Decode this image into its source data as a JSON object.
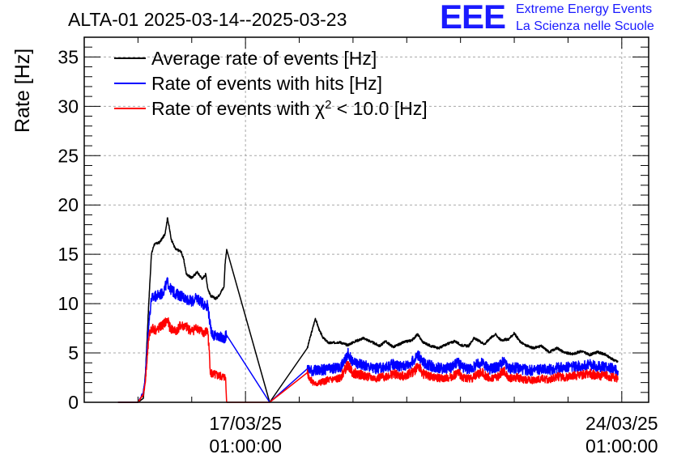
{
  "brand": {
    "logo": "EEE",
    "line1": "Extreme Energy Events",
    "line2": "La Scienza nelle Scuole"
  },
  "chart_data": {
    "type": "line",
    "title": "ALTA-01 2025-03-14--2025-03-23",
    "ylabel": "Rate [Hz]",
    "xlabel": "",
    "ylim": [
      0,
      37
    ],
    "x_unit": "days since 2025-03-14 01:00:00",
    "xlim": [
      0,
      10.5
    ],
    "yticks": [
      0,
      5,
      10,
      15,
      20,
      25,
      30,
      35
    ],
    "xticks": [
      {
        "x": 3,
        "label": [
          "17/03/25",
          "01:00:00"
        ]
      },
      {
        "x": 10,
        "label": [
          "24/03/25",
          "01:00:00"
        ]
      }
    ],
    "grid": true,
    "legend_position": "top-left",
    "legend": [
      {
        "label": "Average rate of events [Hz]",
        "color": "#000000"
      },
      {
        "label": "Rate of events with hits [Hz]",
        "color": "#0000ff"
      },
      {
        "label": "Rate of events with χ² < 10.0 [Hz]",
        "color": "#ff0000"
      }
    ],
    "series": [
      {
        "name": "Average rate of events [Hz]",
        "color": "#000000",
        "points": [
          [
            0.63,
            0
          ],
          [
            1.0,
            0
          ],
          [
            1.1,
            0.4
          ],
          [
            1.14,
            3
          ],
          [
            1.2,
            10
          ],
          [
            1.25,
            15
          ],
          [
            1.3,
            16
          ],
          [
            1.4,
            16.2
          ],
          [
            1.5,
            17
          ],
          [
            1.55,
            18.7
          ],
          [
            1.62,
            16.5
          ],
          [
            1.7,
            15.5
          ],
          [
            1.8,
            15.3
          ],
          [
            1.85,
            14.5
          ],
          [
            1.9,
            13
          ],
          [
            2.0,
            12.6
          ],
          [
            2.1,
            13.2
          ],
          [
            2.2,
            12.5
          ],
          [
            2.26,
            13
          ],
          [
            2.3,
            11.5
          ],
          [
            2.35,
            10.8
          ],
          [
            2.45,
            10.5
          ],
          [
            2.5,
            10.8
          ],
          [
            2.6,
            11.7
          ],
          [
            2.62,
            14
          ],
          [
            2.65,
            15.5
          ],
          [
            3.45,
            0
          ],
          [
            4.15,
            5.5
          ],
          [
            4.25,
            7.5
          ],
          [
            4.3,
            8.5
          ],
          [
            4.38,
            7.2
          ],
          [
            4.45,
            6.5
          ],
          [
            4.55,
            6
          ],
          [
            4.75,
            6.1
          ],
          [
            4.9,
            5.8
          ],
          [
            5.05,
            6.2
          ],
          [
            5.2,
            6.5
          ],
          [
            5.35,
            6.1
          ],
          [
            5.5,
            5.7
          ],
          [
            5.6,
            6.2
          ],
          [
            5.75,
            5.6
          ],
          [
            5.95,
            6.1
          ],
          [
            6.1,
            6.3
          ],
          [
            6.2,
            6.9
          ],
          [
            6.3,
            6.1
          ],
          [
            6.45,
            5.7
          ],
          [
            6.6,
            5.5
          ],
          [
            6.75,
            5.9
          ],
          [
            6.9,
            6.2
          ],
          [
            7.0,
            5.8
          ],
          [
            7.15,
            5.7
          ],
          [
            7.25,
            6.5
          ],
          [
            7.35,
            6.2
          ],
          [
            7.45,
            5.9
          ],
          [
            7.55,
            6.5
          ],
          [
            7.65,
            6.9
          ],
          [
            7.75,
            6.3
          ],
          [
            7.9,
            6.4
          ],
          [
            8.0,
            7.0
          ],
          [
            8.1,
            6.2
          ],
          [
            8.2,
            5.8
          ],
          [
            8.35,
            5.5
          ],
          [
            8.5,
            5.7
          ],
          [
            8.65,
            5.1
          ],
          [
            8.8,
            5.5
          ],
          [
            8.95,
            5.0
          ],
          [
            9.1,
            4.9
          ],
          [
            9.25,
            5.2
          ],
          [
            9.4,
            4.8
          ],
          [
            9.55,
            5.1
          ],
          [
            9.7,
            4.8
          ],
          [
            9.85,
            4.3
          ],
          [
            9.93,
            4.1
          ]
        ]
      },
      {
        "name": "Rate of events with hits [Hz]",
        "color": "#0000ff",
        "points": [
          [
            0.63,
            0
          ],
          [
            1.0,
            0
          ],
          [
            1.1,
            1
          ],
          [
            1.14,
            2.8
          ],
          [
            1.2,
            8
          ],
          [
            1.25,
            10.5
          ],
          [
            1.35,
            10.8
          ],
          [
            1.45,
            11
          ],
          [
            1.55,
            12.2
          ],
          [
            1.6,
            11.5
          ],
          [
            1.7,
            11
          ],
          [
            1.8,
            10.8
          ],
          [
            1.9,
            10.5
          ],
          [
            2.0,
            10.2
          ],
          [
            2.1,
            10.6
          ],
          [
            2.2,
            10
          ],
          [
            2.3,
            9.8
          ],
          [
            2.35,
            7.5
          ],
          [
            2.4,
            6.8
          ],
          [
            2.5,
            6.6
          ],
          [
            2.6,
            6.5
          ],
          [
            2.65,
            6.8
          ],
          [
            3.45,
            0
          ],
          [
            4.15,
            3.4
          ],
          [
            4.25,
            3.2
          ],
          [
            4.5,
            3.3
          ],
          [
            4.75,
            3.5
          ],
          [
            4.85,
            4.2
          ],
          [
            4.9,
            5.0
          ],
          [
            5.0,
            4.0
          ],
          [
            5.2,
            3.8
          ],
          [
            5.4,
            3.4
          ],
          [
            5.6,
            3.5
          ],
          [
            5.75,
            3.9
          ],
          [
            5.9,
            3.6
          ],
          [
            6.05,
            3.9
          ],
          [
            6.15,
            4.3
          ],
          [
            6.2,
            4.9
          ],
          [
            6.3,
            4.0
          ],
          [
            6.5,
            3.6
          ],
          [
            6.7,
            3.4
          ],
          [
            6.85,
            3.6
          ],
          [
            6.95,
            4.0
          ],
          [
            7.05,
            3.5
          ],
          [
            7.2,
            3.4
          ],
          [
            7.3,
            3.8
          ],
          [
            7.4,
            4.0
          ],
          [
            7.55,
            3.4
          ],
          [
            7.7,
            3.6
          ],
          [
            7.8,
            4.1
          ],
          [
            7.9,
            3.4
          ],
          [
            8.05,
            3.5
          ],
          [
            8.2,
            3.3
          ],
          [
            8.35,
            3.2
          ],
          [
            8.5,
            3.4
          ],
          [
            8.65,
            3.3
          ],
          [
            8.8,
            3.5
          ],
          [
            8.95,
            3.5
          ],
          [
            9.1,
            3.6
          ],
          [
            9.25,
            3.7
          ],
          [
            9.4,
            3.8
          ],
          [
            9.55,
            3.6
          ],
          [
            9.7,
            3.6
          ],
          [
            9.85,
            3.4
          ],
          [
            9.93,
            3.2
          ]
        ]
      },
      {
        "name": "Rate of events with χ² < 10.0 [Hz]",
        "color": "#ff0000",
        "points": [
          [
            0.63,
            0
          ],
          [
            1.0,
            0
          ],
          [
            1.1,
            0.8
          ],
          [
            1.14,
            2.2
          ],
          [
            1.2,
            6.5
          ],
          [
            1.25,
            7.5
          ],
          [
            1.35,
            7.3
          ],
          [
            1.45,
            7.8
          ],
          [
            1.55,
            8.3
          ],
          [
            1.6,
            7.5
          ],
          [
            1.7,
            7.2
          ],
          [
            1.8,
            7.8
          ],
          [
            1.9,
            7.6
          ],
          [
            2.0,
            7.2
          ],
          [
            2.1,
            7.6
          ],
          [
            2.2,
            7.0
          ],
          [
            2.3,
            7.2
          ],
          [
            2.35,
            3
          ],
          [
            2.4,
            2.8
          ],
          [
            2.55,
            2.6
          ],
          [
            2.63,
            2.5
          ],
          [
            2.65,
            0
          ],
          [
            3.45,
            0
          ],
          [
            4.15,
            3.0
          ],
          [
            4.2,
            2.4
          ],
          [
            4.3,
            1.8
          ],
          [
            4.5,
            2.2
          ],
          [
            4.75,
            2.4
          ],
          [
            4.85,
            3.3
          ],
          [
            4.9,
            3.8
          ],
          [
            5.0,
            3.0
          ],
          [
            5.2,
            2.7
          ],
          [
            5.4,
            2.4
          ],
          [
            5.6,
            2.6
          ],
          [
            5.75,
            2.9
          ],
          [
            5.9,
            2.6
          ],
          [
            6.05,
            2.9
          ],
          [
            6.15,
            3.2
          ],
          [
            6.2,
            3.8
          ],
          [
            6.3,
            2.9
          ],
          [
            6.5,
            2.5
          ],
          [
            6.7,
            2.4
          ],
          [
            6.85,
            2.6
          ],
          [
            6.95,
            3.0
          ],
          [
            7.05,
            2.5
          ],
          [
            7.2,
            2.4
          ],
          [
            7.3,
            2.8
          ],
          [
            7.4,
            3.0
          ],
          [
            7.55,
            2.4
          ],
          [
            7.7,
            2.6
          ],
          [
            7.8,
            3.2
          ],
          [
            7.9,
            2.4
          ],
          [
            8.05,
            2.5
          ],
          [
            8.2,
            2.3
          ],
          [
            8.35,
            2.2
          ],
          [
            8.5,
            2.4
          ],
          [
            8.65,
            2.3
          ],
          [
            8.8,
            2.6
          ],
          [
            8.95,
            2.5
          ],
          [
            9.1,
            2.7
          ],
          [
            9.25,
            2.8
          ],
          [
            9.4,
            2.9
          ],
          [
            9.55,
            2.7
          ],
          [
            9.7,
            2.7
          ],
          [
            9.85,
            2.5
          ],
          [
            9.93,
            2.4
          ]
        ]
      }
    ]
  }
}
